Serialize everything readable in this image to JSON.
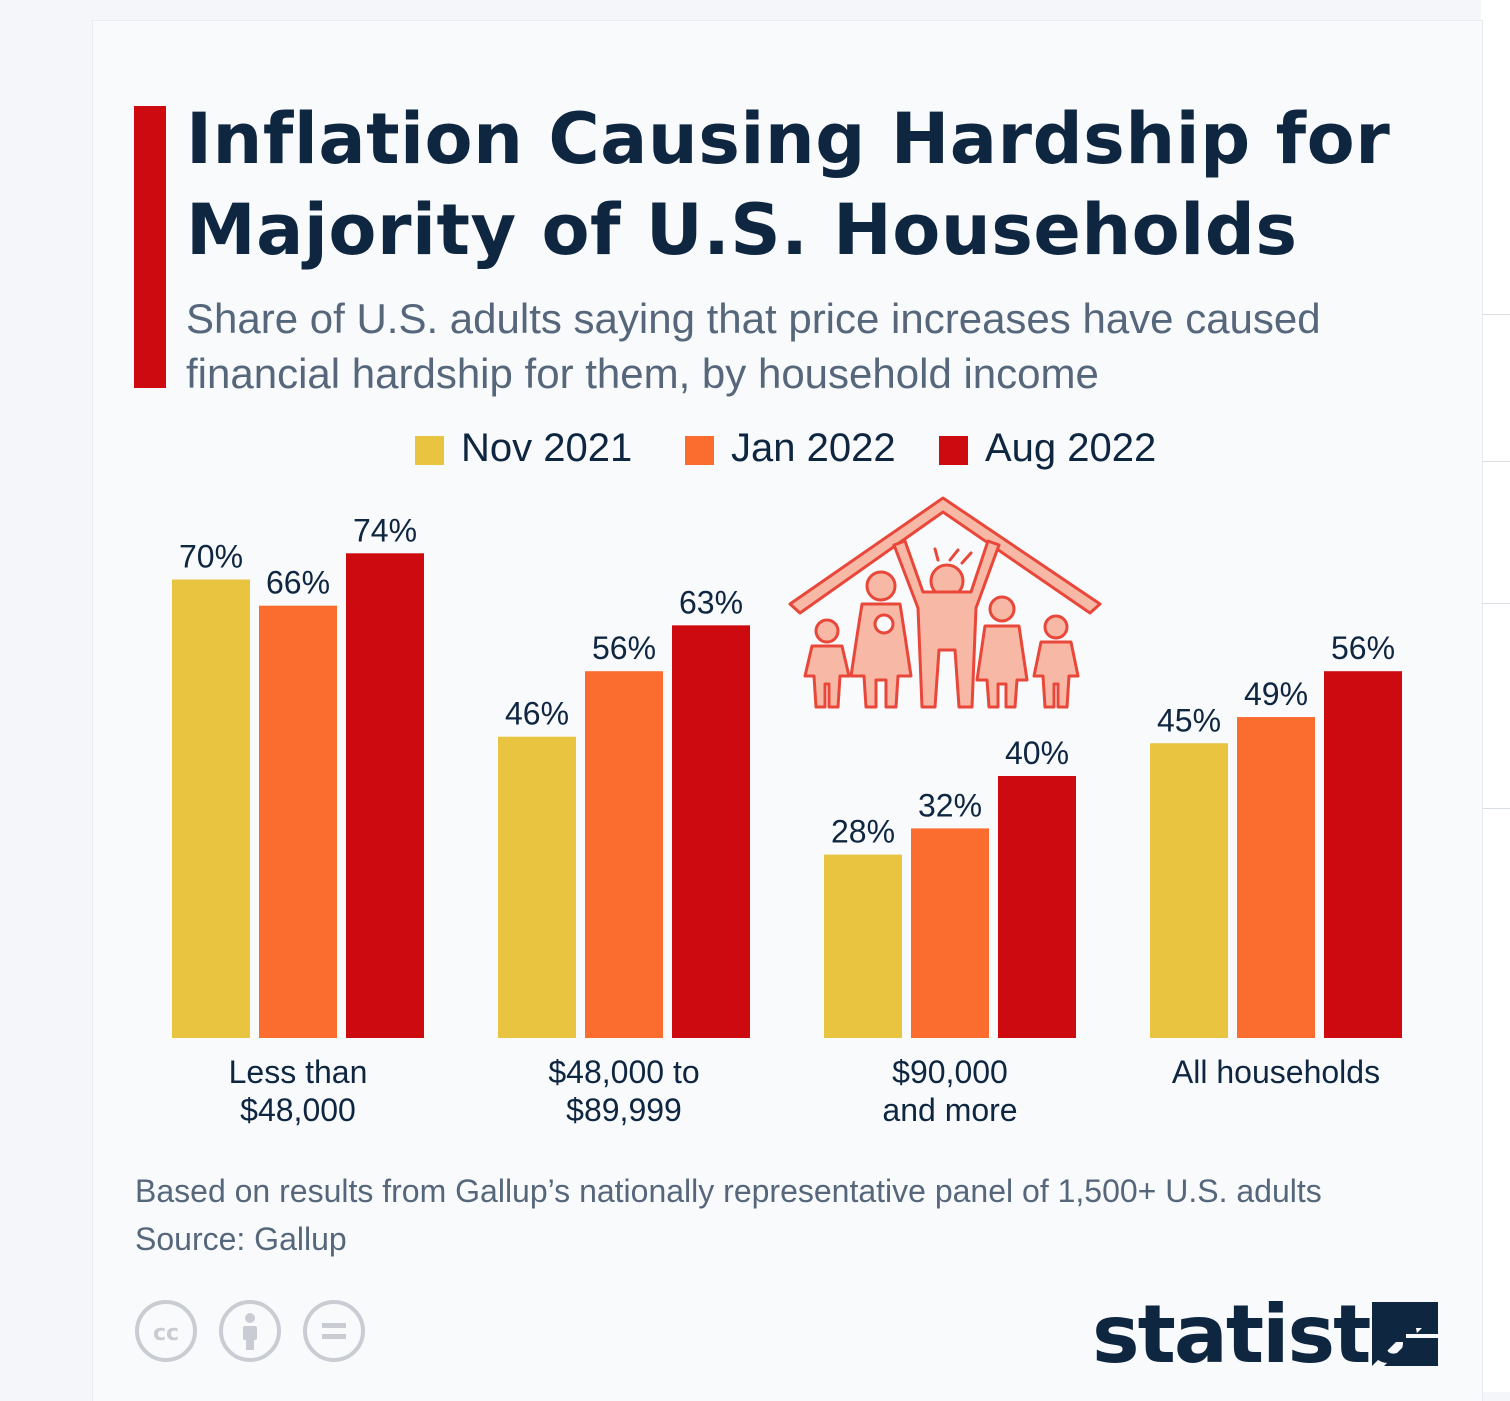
{
  "title": "Inflation Causing Hardship for Majority of U.S. Households",
  "subtitle": "Share of U.S. adults saying that price increases have caused financial hardship for them, by household income",
  "legend": [
    {
      "label": "Nov 2021",
      "color": "#e8c440"
    },
    {
      "label": "Jan 2022",
      "color": "#fb6c2f"
    },
    {
      "label": "Aug 2022",
      "color": "#cc0a0f"
    }
  ],
  "chart_data": {
    "type": "bar",
    "categories": [
      [
        "Less than",
        "$48,000"
      ],
      [
        "$48,000 to",
        "$89,999"
      ],
      [
        "$90,000",
        "and more"
      ],
      [
        "All households"
      ]
    ],
    "series": [
      {
        "name": "Nov 2021",
        "color": "#e8c440",
        "values": [
          70,
          46,
          28,
          45
        ],
        "labels": [
          "70%",
          "46%",
          "28%",
          "45%"
        ]
      },
      {
        "name": "Jan 2022",
        "color": "#fb6c2f",
        "values": [
          66,
          56,
          32,
          49
        ],
        "labels": [
          "66%",
          "56%",
          "32%",
          "49%"
        ]
      },
      {
        "name": "Aug 2022",
        "color": "#cc0a0f",
        "values": [
          74,
          63,
          40,
          56
        ],
        "labels": [
          "74%",
          "63%",
          "40%",
          "56%"
        ]
      }
    ],
    "ylim": [
      0,
      100
    ],
    "grid": false,
    "legend_position": "top"
  },
  "note": "Based on results from Gallup’s nationally representative panel of 1,500+ U.S. adults",
  "source": "Source: Gallup",
  "footer": {
    "license_icons": [
      "creative-commons-icon",
      "attribution-icon",
      "no-derivatives-icon"
    ],
    "brand": "statista"
  }
}
